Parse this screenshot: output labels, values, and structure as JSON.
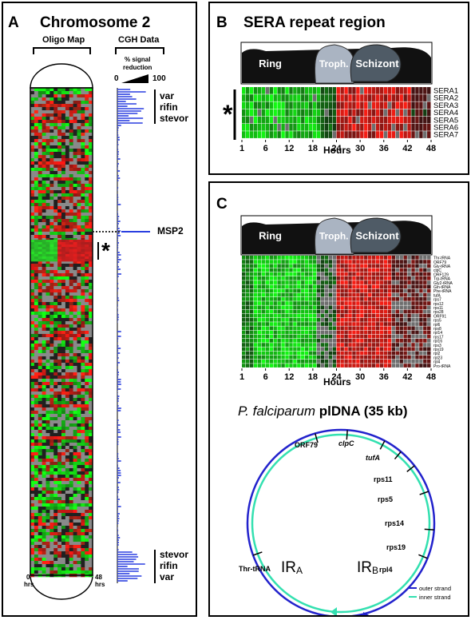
{
  "panelA": {
    "letter": "A",
    "title": "Chromosome 2",
    "oligo_map_label": "Oligo Map",
    "cgh_label": "CGH Data",
    "signal_label_1": "% signal",
    "signal_label_2": "reduction",
    "scale_min": "0",
    "scale_max": "100",
    "top_genes": [
      "var",
      "rifin",
      "stevor"
    ],
    "bottom_genes": [
      "stevor",
      "rifin",
      "var"
    ],
    "msp_label": "MSP2",
    "star": "*",
    "hrs_left_num": "0",
    "hrs_right_num": "48",
    "hrs_unit": "hrs"
  },
  "panelB": {
    "letter": "B",
    "title": "SERA repeat region",
    "stages": [
      "Ring",
      "Troph.",
      "Schizont"
    ],
    "genes": [
      "SERA1",
      "SERA2",
      "SERA3",
      "SERA4",
      "SERA5",
      "SERA6",
      "SERA7"
    ],
    "ticks": [
      "1",
      "6",
      "12",
      "18",
      "24",
      "30",
      "36",
      "42",
      "48"
    ],
    "xlabel": "Hours",
    "star": "*"
  },
  "panelC": {
    "letter": "C",
    "stages": [
      "Ring",
      "Troph.",
      "Schizont"
    ],
    "genes": [
      "Thr-tRNA",
      "ORF79",
      "Gly-tRNA",
      "clpC",
      "ORF129",
      "Trp-tRNA",
      "Gly2-tRNA",
      "Gln-tRNA",
      "Phe-tRNA",
      "tufA",
      "rps7",
      "rps12",
      "rps11",
      "rps28",
      "ORF91",
      "rps5",
      "rpl6",
      "rps8",
      "rpl14",
      "rps17",
      "rpl16",
      "rps3",
      "rps19",
      "rpl2",
      "rpl23",
      "rpl4",
      "Pro-tRNA"
    ],
    "ticks": [
      "1",
      "6",
      "12",
      "18",
      "24",
      "30",
      "36",
      "42",
      "48"
    ],
    "xlabel": "Hours",
    "plastid_title_italic": "P. falciparum",
    "plastid_title_rest": "plDNA (35 kb)",
    "circle_labels": [
      "ORF79",
      "clpC",
      "tufA",
      "rps11",
      "rps5",
      "rps14",
      "rps19",
      "rpl4",
      "Thr-tRNA"
    ],
    "ir_a_main": "IR",
    "ir_a_sub": "A",
    "ir_b_main": "IR",
    "ir_b_sub": "B",
    "legend_outer": "outer strand",
    "legend_inner": "inner strand",
    "colors": {
      "outer": "#2222cc",
      "inner": "#33e0b0"
    }
  }
}
